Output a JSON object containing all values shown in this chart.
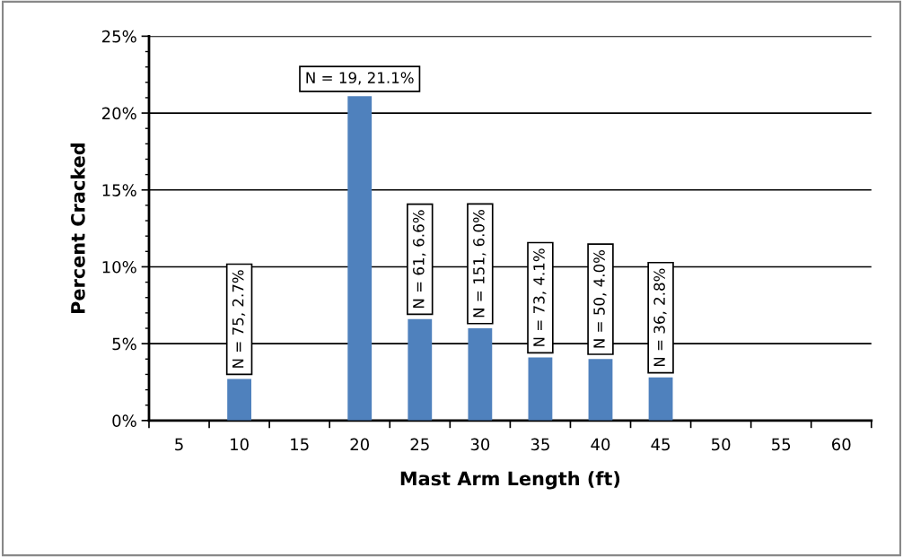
{
  "chart_data": {
    "type": "bar",
    "xlabel": "Mast Arm Length (ft)",
    "ylabel": "Percent Cracked",
    "categories": [
      "5",
      "10",
      "15",
      "20",
      "25",
      "30",
      "35",
      "40",
      "45",
      "50",
      "55",
      "60"
    ],
    "series": [
      {
        "color": "#4f81bd",
        "values": [
          0,
          2.7,
          0,
          21.1,
          6.6,
          6.0,
          4.1,
          4.0,
          2.8,
          0,
          0,
          0
        ],
        "value_labels": [
          null,
          "N = 75, 2.7%",
          null,
          "N = 19, 21.1%",
          "N = 61, 6.6%",
          "N = 151, 6.0%",
          "N = 73, 4.1%",
          "N = 50, 4.0%",
          "N = 36, 2.8%",
          null,
          null,
          null
        ]
      }
    ],
    "ylim": [
      0,
      25
    ],
    "yticks": [
      {
        "value": 0,
        "label": "0%"
      },
      {
        "value": 5,
        "label": "5%"
      },
      {
        "value": 10,
        "label": "10%"
      },
      {
        "value": 15,
        "label": "15%"
      },
      {
        "value": 20,
        "label": "20%"
      },
      {
        "value": 25,
        "label": "25%"
      }
    ],
    "grid": "y",
    "legend": false
  }
}
